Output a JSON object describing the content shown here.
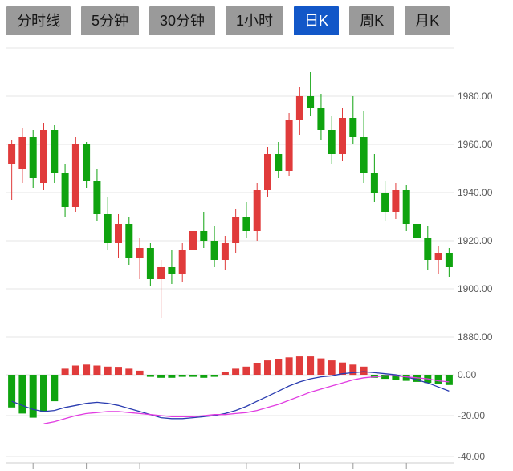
{
  "tabs": [
    {
      "id": "time-line",
      "label": "分时线",
      "active": false
    },
    {
      "id": "5min",
      "label": "5分钟",
      "active": false
    },
    {
      "id": "30min",
      "label": "30分钟",
      "active": false
    },
    {
      "id": "1hour",
      "label": "1小时",
      "active": false
    },
    {
      "id": "daily-k",
      "label": "日K",
      "active": true
    },
    {
      "id": "weekly-k",
      "label": "周K",
      "active": false
    },
    {
      "id": "monthly-k",
      "label": "月K",
      "active": false
    }
  ],
  "chart_data": {
    "type": "candlestick",
    "title": "",
    "price_ticks": [
      "1980.00",
      "1960.00",
      "1940.00",
      "1920.00",
      "1900.00",
      "1880.00"
    ],
    "price_tick_values": [
      1980,
      1960,
      1940,
      1920,
      1900,
      1880
    ],
    "price_range_visible": [
      1876,
      2000
    ],
    "grid": true,
    "candles": [
      [
        1952,
        1962,
        1937,
        1960
      ],
      [
        1950,
        1967,
        1944,
        1963
      ],
      [
        1963,
        1966,
        1942,
        1946
      ],
      [
        1944,
        1969,
        1941,
        1966
      ],
      [
        1966,
        1968,
        1944,
        1948
      ],
      [
        1948,
        1952,
        1930,
        1934
      ],
      [
        1934,
        1963,
        1932,
        1960
      ],
      [
        1960,
        1961,
        1942,
        1945
      ],
      [
        1945,
        1950,
        1928,
        1931
      ],
      [
        1931,
        1938,
        1916,
        1919
      ],
      [
        1919,
        1931,
        1913,
        1927
      ],
      [
        1927,
        1930,
        1910,
        1913
      ],
      [
        1913,
        1921,
        1904,
        1917
      ],
      [
        1917,
        1919,
        1901,
        1904
      ],
      [
        1904,
        1912,
        1888,
        1909
      ],
      [
        1909,
        1916,
        1902,
        1906
      ],
      [
        1906,
        1919,
        1903,
        1916
      ],
      [
        1916,
        1927,
        1912,
        1924
      ],
      [
        1924,
        1932,
        1917,
        1920
      ],
      [
        1920,
        1926,
        1909,
        1912
      ],
      [
        1912,
        1922,
        1908,
        1919
      ],
      [
        1919,
        1933,
        1915,
        1930
      ],
      [
        1930,
        1936,
        1921,
        1924
      ],
      [
        1924,
        1944,
        1920,
        1941
      ],
      [
        1941,
        1959,
        1938,
        1956
      ],
      [
        1956,
        1961,
        1946,
        1949
      ],
      [
        1949,
        1973,
        1947,
        1970
      ],
      [
        1970,
        1984,
        1964,
        1980
      ],
      [
        1980,
        1990,
        1972,
        1975
      ],
      [
        1975,
        1981,
        1962,
        1966
      ],
      [
        1966,
        1972,
        1952,
        1956
      ],
      [
        1956,
        1975,
        1953,
        1971
      ],
      [
        1971,
        1980,
        1960,
        1963
      ],
      [
        1963,
        1974,
        1944,
        1948
      ],
      [
        1948,
        1956,
        1936,
        1940
      ],
      [
        1940,
        1945,
        1928,
        1932
      ],
      [
        1932,
        1944,
        1929,
        1941
      ],
      [
        1941,
        1943,
        1924,
        1927
      ],
      [
        1927,
        1934,
        1917,
        1921
      ],
      [
        1921,
        1926,
        1908,
        1912
      ],
      [
        1912,
        1918,
        1906,
        1915
      ],
      [
        1915,
        1917,
        1905,
        1909
      ]
    ],
    "macd": {
      "ticks": [
        "0.00",
        "-20.00",
        "-40.00"
      ],
      "tick_values": [
        0,
        -20,
        -40
      ],
      "histogram": [
        -16,
        -19,
        -21,
        -18,
        -13,
        3,
        4.5,
        5,
        4.5,
        4,
        3.5,
        3,
        2,
        -1,
        -1.5,
        -1.5,
        -1,
        -1,
        -1.5,
        -1,
        1.5,
        3,
        4,
        5.5,
        7,
        7.5,
        8.5,
        9,
        9,
        8,
        7,
        6,
        5,
        4,
        -1.5,
        -2,
        -2.5,
        -3,
        -3.5,
        -4,
        -4.5,
        -5
      ],
      "dif": [
        -13,
        -15,
        -17,
        -18,
        -17.5,
        -16,
        -15,
        -14,
        -13.5,
        -14,
        -15,
        -16.5,
        -18,
        -19.5,
        -21,
        -21.5,
        -21.5,
        -21,
        -20.5,
        -20,
        -19,
        -17.5,
        -15.5,
        -13,
        -10.5,
        -8,
        -5.5,
        -3.5,
        -2,
        -1,
        -0.5,
        0.5,
        1,
        1.5,
        1,
        0.5,
        0,
        -1,
        -2.5,
        -4,
        -6,
        -8
      ],
      "dea": [
        null,
        null,
        null,
        -24,
        -23,
        -21.5,
        -20,
        -19,
        -18.5,
        -18,
        -18,
        -18.5,
        -19,
        -19.5,
        -20,
        -20.5,
        -20.5,
        -20.5,
        -20,
        -19.5,
        -19.5,
        -19,
        -18.5,
        -17.5,
        -16,
        -14.5,
        -12.5,
        -10.5,
        -8.5,
        -7,
        -5.5,
        -4,
        -2.5,
        -1.5,
        -1,
        -0.5,
        -0.5,
        -1,
        -1.5,
        -2,
        -3,
        -3.5
      ]
    },
    "colors": {
      "up": "#e03b3b",
      "down": "#0fa30f",
      "dif": "#2a3cb0",
      "dea": "#e13ce1",
      "grid": "#e5e5e5",
      "axis_text": "#5a5a5a",
      "x_axis": "#cccccc",
      "x_tick": "#999999"
    }
  }
}
